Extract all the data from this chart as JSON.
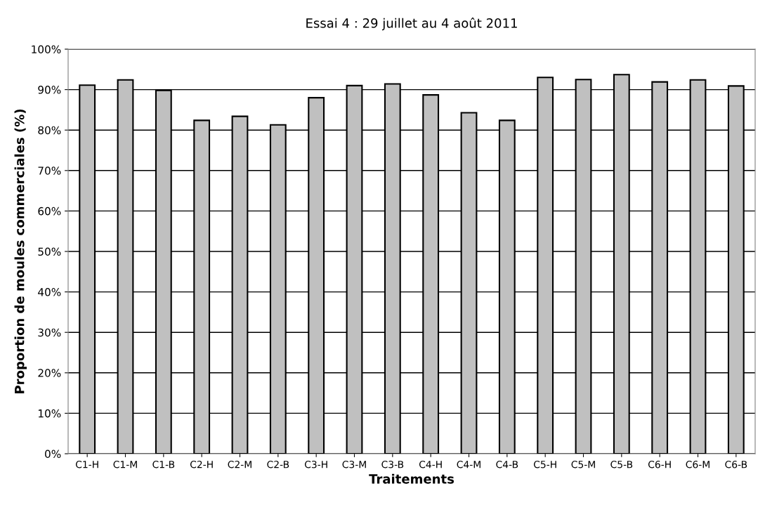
{
  "chart_data": {
    "type": "bar",
    "title": "Essai 4 : 29 juillet au 4 août 2011",
    "xlabel": "Traitements",
    "ylabel": "Proportion de moules commerciales (%)",
    "categories": [
      "C1-H",
      "C1-M",
      "C1-B",
      "C2-H",
      "C2-M",
      "C2-B",
      "C3-H",
      "C3-M",
      "C3-B",
      "C4-H",
      "C4-M",
      "C4-B",
      "C5-H",
      "C5-M",
      "C5-B",
      "C6-H",
      "C6-M",
      "C6-B"
    ],
    "values": [
      91.1,
      92.4,
      89.8,
      82.4,
      83.4,
      81.3,
      88.0,
      91.0,
      91.4,
      88.7,
      84.3,
      82.4,
      93.0,
      92.5,
      93.7,
      91.9,
      92.4,
      90.9
    ],
    "color": "#c0c0c0",
    "ylim": [
      0,
      100
    ],
    "yticks": [
      {
        "value": 0,
        "label": "0%"
      },
      {
        "value": 10,
        "label": "10%"
      },
      {
        "value": 20,
        "label": "20%"
      },
      {
        "value": 30,
        "label": "30%"
      },
      {
        "value": 40,
        "label": "40%"
      },
      {
        "value": 50,
        "label": "50%"
      },
      {
        "value": 60,
        "label": "60%"
      },
      {
        "value": 70,
        "label": "70%"
      },
      {
        "value": 80,
        "label": "80%"
      },
      {
        "value": 90,
        "label": "90%"
      },
      {
        "value": 100,
        "label": "100%"
      }
    ],
    "grid": "y",
    "legend": false
  }
}
